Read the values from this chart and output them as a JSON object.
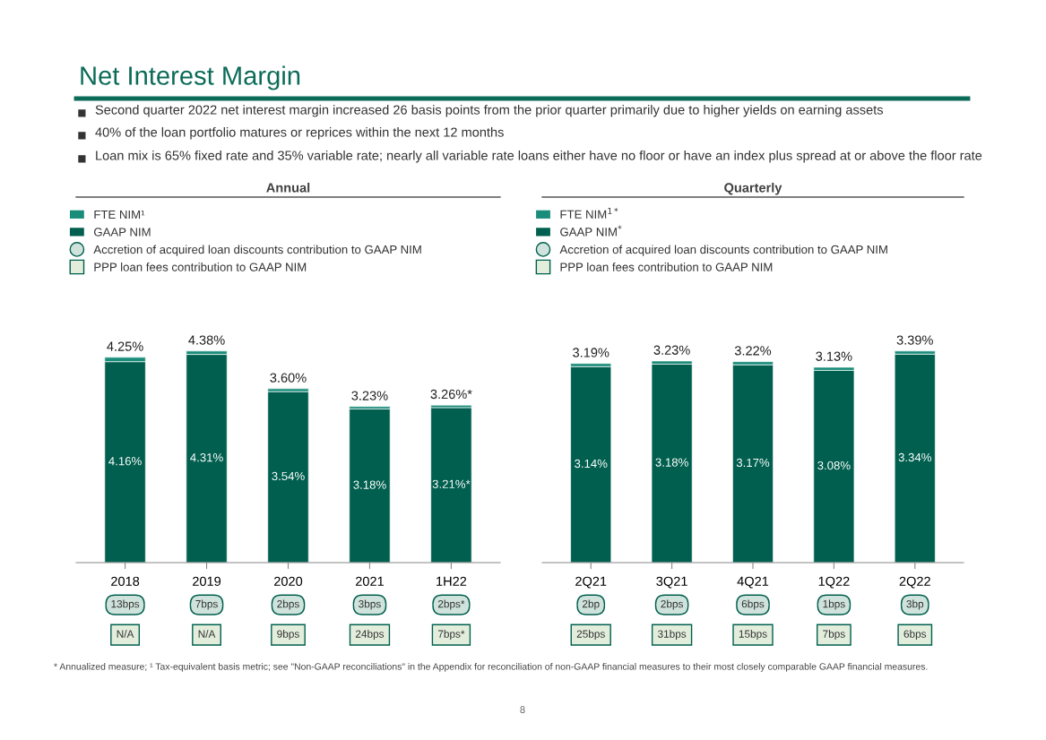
{
  "chart_data": [
    {
      "type": "bar",
      "title": "Annual",
      "stacked": true,
      "grid": false,
      "legend": "top left",
      "tick_labels": "x",
      "categories": [
        "2018",
        "2019",
        "2020",
        "2021",
        "1H22"
      ],
      "series": [
        {
          "name": "GAAP NIM",
          "color": "#005f4e",
          "values": [
            4.16,
            4.31,
            3.54,
            3.18,
            3.21
          ],
          "value_labels": [
            "4.16%",
            "4.31%",
            "3.54%",
            "3.18%",
            "3.21%*"
          ]
        },
        {
          "name": "FTE NIM¹",
          "color": "#1a8c7a",
          "values": [
            0.09,
            0.07,
            0.06,
            0.05,
            0.05
          ]
        }
      ],
      "totals": [
        "4.25%",
        "4.38%",
        "3.60%",
        "3.23%",
        "3.26%*"
      ],
      "annotations": [
        "Net Interest Margin",
        "Second quarter 2022 net interest margin increased 26 basis points from the prior quarter primarily due to higher yields on earning assets",
        "40% of the loan portfolio matures or reprices within the next 12 months",
        "Loan mix is 65% fixed rate and 35% variable rate; nearly all variable rate loans either have no floor or have an index plus spread at or above the floor rate",
        "* Annualized measure; ¹ Tax-equivalent basis metric; see \"Non-GAAP reconciliations\" in the Appendix for reconciliation of non-GAAP financial measures to their most closely comparable GAAP financial measures.",
        "8",
        "Accretion of acquired loan discounts contribution to GAAP NIM",
        "PPP loan fees contribution to GAAP NIM",
        "13bps",
        "7bps",
        "2bps",
        "3bps",
        "2bps*",
        "N/A",
        "N/A",
        "9bps",
        "24bps",
        "7bps*"
      ]
    },
    {
      "type": "bar",
      "title": "Quarterly",
      "stacked": true,
      "grid": false,
      "legend": "top left",
      "tick_labels": "x",
      "categories": [
        "2Q21",
        "3Q21",
        "4Q21",
        "1Q22",
        "2Q22"
      ],
      "series": [
        {
          "name": "GAAP NIM$^{*}$",
          "color": "#005f4e",
          "values": [
            3.14,
            3.18,
            3.17,
            3.08,
            3.34
          ],
          "value_labels": [
            "3.14%",
            "3.18%",
            "3.17%",
            "3.08%",
            "3.34%"
          ]
        },
        {
          "name": "FTE NIM$^{1*}$",
          "color": "#1a8c7a",
          "values": [
            0.05,
            0.05,
            0.05,
            0.05,
            0.05
          ]
        }
      ],
      "totals": [
        "3.19%",
        "3.23%",
        "3.22%",
        "3.13%",
        "3.39%"
      ],
      "annotations": [
        "Accretion of acquired loan discounts contribution to GAAP NIM",
        "PPP loan fees contribution to GAAP NIM",
        "2bp",
        "2bps",
        "6bps",
        "1bps",
        "3bp",
        "25bps",
        "31bps",
        "15bps",
        "7bps",
        "6bps"
      ]
    }
  ]
}
